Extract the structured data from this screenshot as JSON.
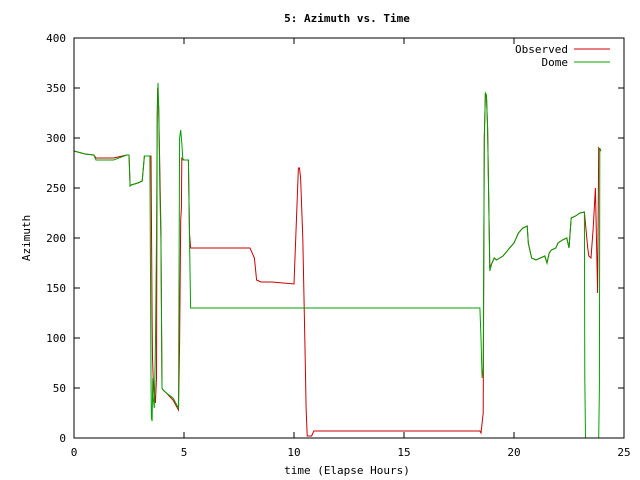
{
  "chart_data": {
    "type": "line",
    "title": "5: Azimuth vs. Time",
    "xlabel": "time (Elapse Hours)",
    "ylabel": "Azimuth",
    "xlim": [
      0,
      25
    ],
    "ylim": [
      0,
      400
    ],
    "xticks": [
      0,
      5,
      10,
      15,
      20,
      25
    ],
    "yticks": [
      0,
      50,
      100,
      150,
      200,
      250,
      300,
      350,
      400
    ],
    "xtick_labels": [
      "0",
      "5",
      "10",
      "15",
      "20",
      "25"
    ],
    "ytick_labels": [
      "0",
      "50",
      "100",
      "150",
      "200",
      "250",
      "300",
      "350",
      "400"
    ],
    "grid": false,
    "legend_position": "top-right",
    "series": [
      {
        "name": "Observed",
        "color": "#cc0000",
        "x": [
          0,
          0.5,
          0.9,
          1.0,
          1.8,
          2.4,
          2.5,
          2.55,
          2.6,
          2.9,
          3.1,
          3.2,
          3.5,
          3.52,
          3.55,
          3.57,
          3.6,
          3.62,
          3.65,
          3.7,
          3.75,
          3.78,
          3.8,
          3.85,
          3.9,
          3.95,
          4.0,
          4.05,
          4.2,
          4.5,
          4.75,
          4.8,
          4.85,
          4.88,
          4.9,
          5.0,
          5.1,
          5.2,
          5.25,
          5.3,
          5.5,
          6,
          7,
          8,
          8.2,
          8.3,
          8.5,
          9,
          9.5,
          10.0,
          10.2,
          10.25,
          10.3,
          10.4,
          10.5,
          10.55,
          10.6,
          10.7,
          10.8,
          10.9,
          11.0,
          12,
          14,
          16,
          18,
          18.45,
          18.5,
          18.6,
          18.65,
          18.7,
          18.75,
          18.8,
          18.85,
          18.9,
          19.0,
          19.1,
          19.2,
          19.5,
          19.8,
          20.0,
          20.2,
          20.4,
          20.6,
          20.65,
          20.7,
          20.8,
          21.0,
          21.2,
          21.4,
          21.5,
          21.6,
          21.7,
          21.9,
          22.0,
          22.2,
          22.4,
          22.5,
          22.55,
          22.6,
          22.8,
          23.0,
          23.2,
          23.35,
          23.4,
          23.5,
          23.6,
          23.7,
          23.8,
          23.85,
          23.9,
          23.95
        ],
        "y": [
          287,
          284,
          283,
          280,
          280,
          283,
          283,
          252,
          253,
          255,
          257,
          282,
          282,
          225,
          120,
          80,
          60,
          55,
          45,
          35,
          60,
          320,
          350,
          330,
          270,
          210,
          50,
          48,
          45,
          38,
          28,
          95,
          218,
          230,
          280,
          278,
          278,
          278,
          205,
          190,
          190,
          190,
          190,
          190,
          180,
          158,
          156,
          156,
          155,
          154,
          270,
          270,
          260,
          200,
          90,
          30,
          2,
          2,
          2,
          7,
          7,
          7,
          7,
          7,
          7,
          7,
          5,
          25,
          300,
          345,
          340,
          310,
          240,
          170,
          175,
          180,
          178,
          182,
          190,
          195,
          205,
          210,
          212,
          195,
          190,
          180,
          178,
          180,
          182,
          175,
          185,
          188,
          190,
          195,
          198,
          200,
          190,
          205,
          220,
          222,
          225,
          226,
          190,
          182,
          180,
          210,
          250,
          145,
          290,
          288,
          287
        ]
      },
      {
        "name": "Dome",
        "color": "#00a000",
        "x": [
          0,
          0.5,
          0.9,
          1.0,
          1.8,
          2.4,
          2.5,
          2.55,
          2.6,
          2.9,
          3.1,
          3.2,
          3.45,
          3.5,
          3.52,
          3.55,
          3.58,
          3.6,
          3.65,
          3.7,
          3.75,
          3.78,
          3.82,
          3.85,
          3.9,
          3.95,
          4.0,
          4.05,
          4.2,
          4.5,
          4.75,
          4.8,
          4.85,
          4.9,
          4.95,
          5.0,
          5.2,
          5.25,
          5.3,
          6,
          10,
          14,
          18.4,
          18.45,
          18.5,
          18.55,
          18.6,
          18.65,
          18.7,
          18.75,
          18.8,
          18.85,
          18.9,
          19.0,
          19.1,
          19.2,
          19.5,
          19.8,
          20.0,
          20.2,
          20.4,
          20.6,
          20.65,
          20.7,
          20.8,
          21.0,
          21.2,
          21.4,
          21.5,
          21.6,
          21.7,
          21.9,
          22.0,
          22.2,
          22.4,
          22.5,
          22.55,
          22.6,
          22.8,
          23.0,
          23.2,
          23.22,
          23.25,
          23.3,
          23.5,
          23.7,
          23.8,
          23.85,
          23.88,
          23.9,
          23.95
        ],
        "y": [
          287,
          284,
          283,
          278,
          278,
          283,
          283,
          252,
          253,
          255,
          257,
          282,
          282,
          60,
          20,
          17,
          60,
          40,
          30,
          90,
          200,
          320,
          355,
          330,
          250,
          200,
          50,
          48,
          45,
          40,
          30,
          300,
          308,
          295,
          278,
          278,
          278,
          200,
          130,
          130,
          130,
          130,
          130,
          130,
          100,
          60,
          70,
          300,
          345,
          343,
          310,
          240,
          167,
          175,
          180,
          178,
          182,
          190,
          195,
          205,
          210,
          212,
          195,
          190,
          180,
          178,
          180,
          182,
          175,
          185,
          188,
          190,
          195,
          198,
          200,
          190,
          205,
          220,
          222,
          225,
          226,
          60,
          0,
          0,
          0,
          0,
          0,
          0,
          50,
          290,
          287
        ]
      }
    ]
  }
}
